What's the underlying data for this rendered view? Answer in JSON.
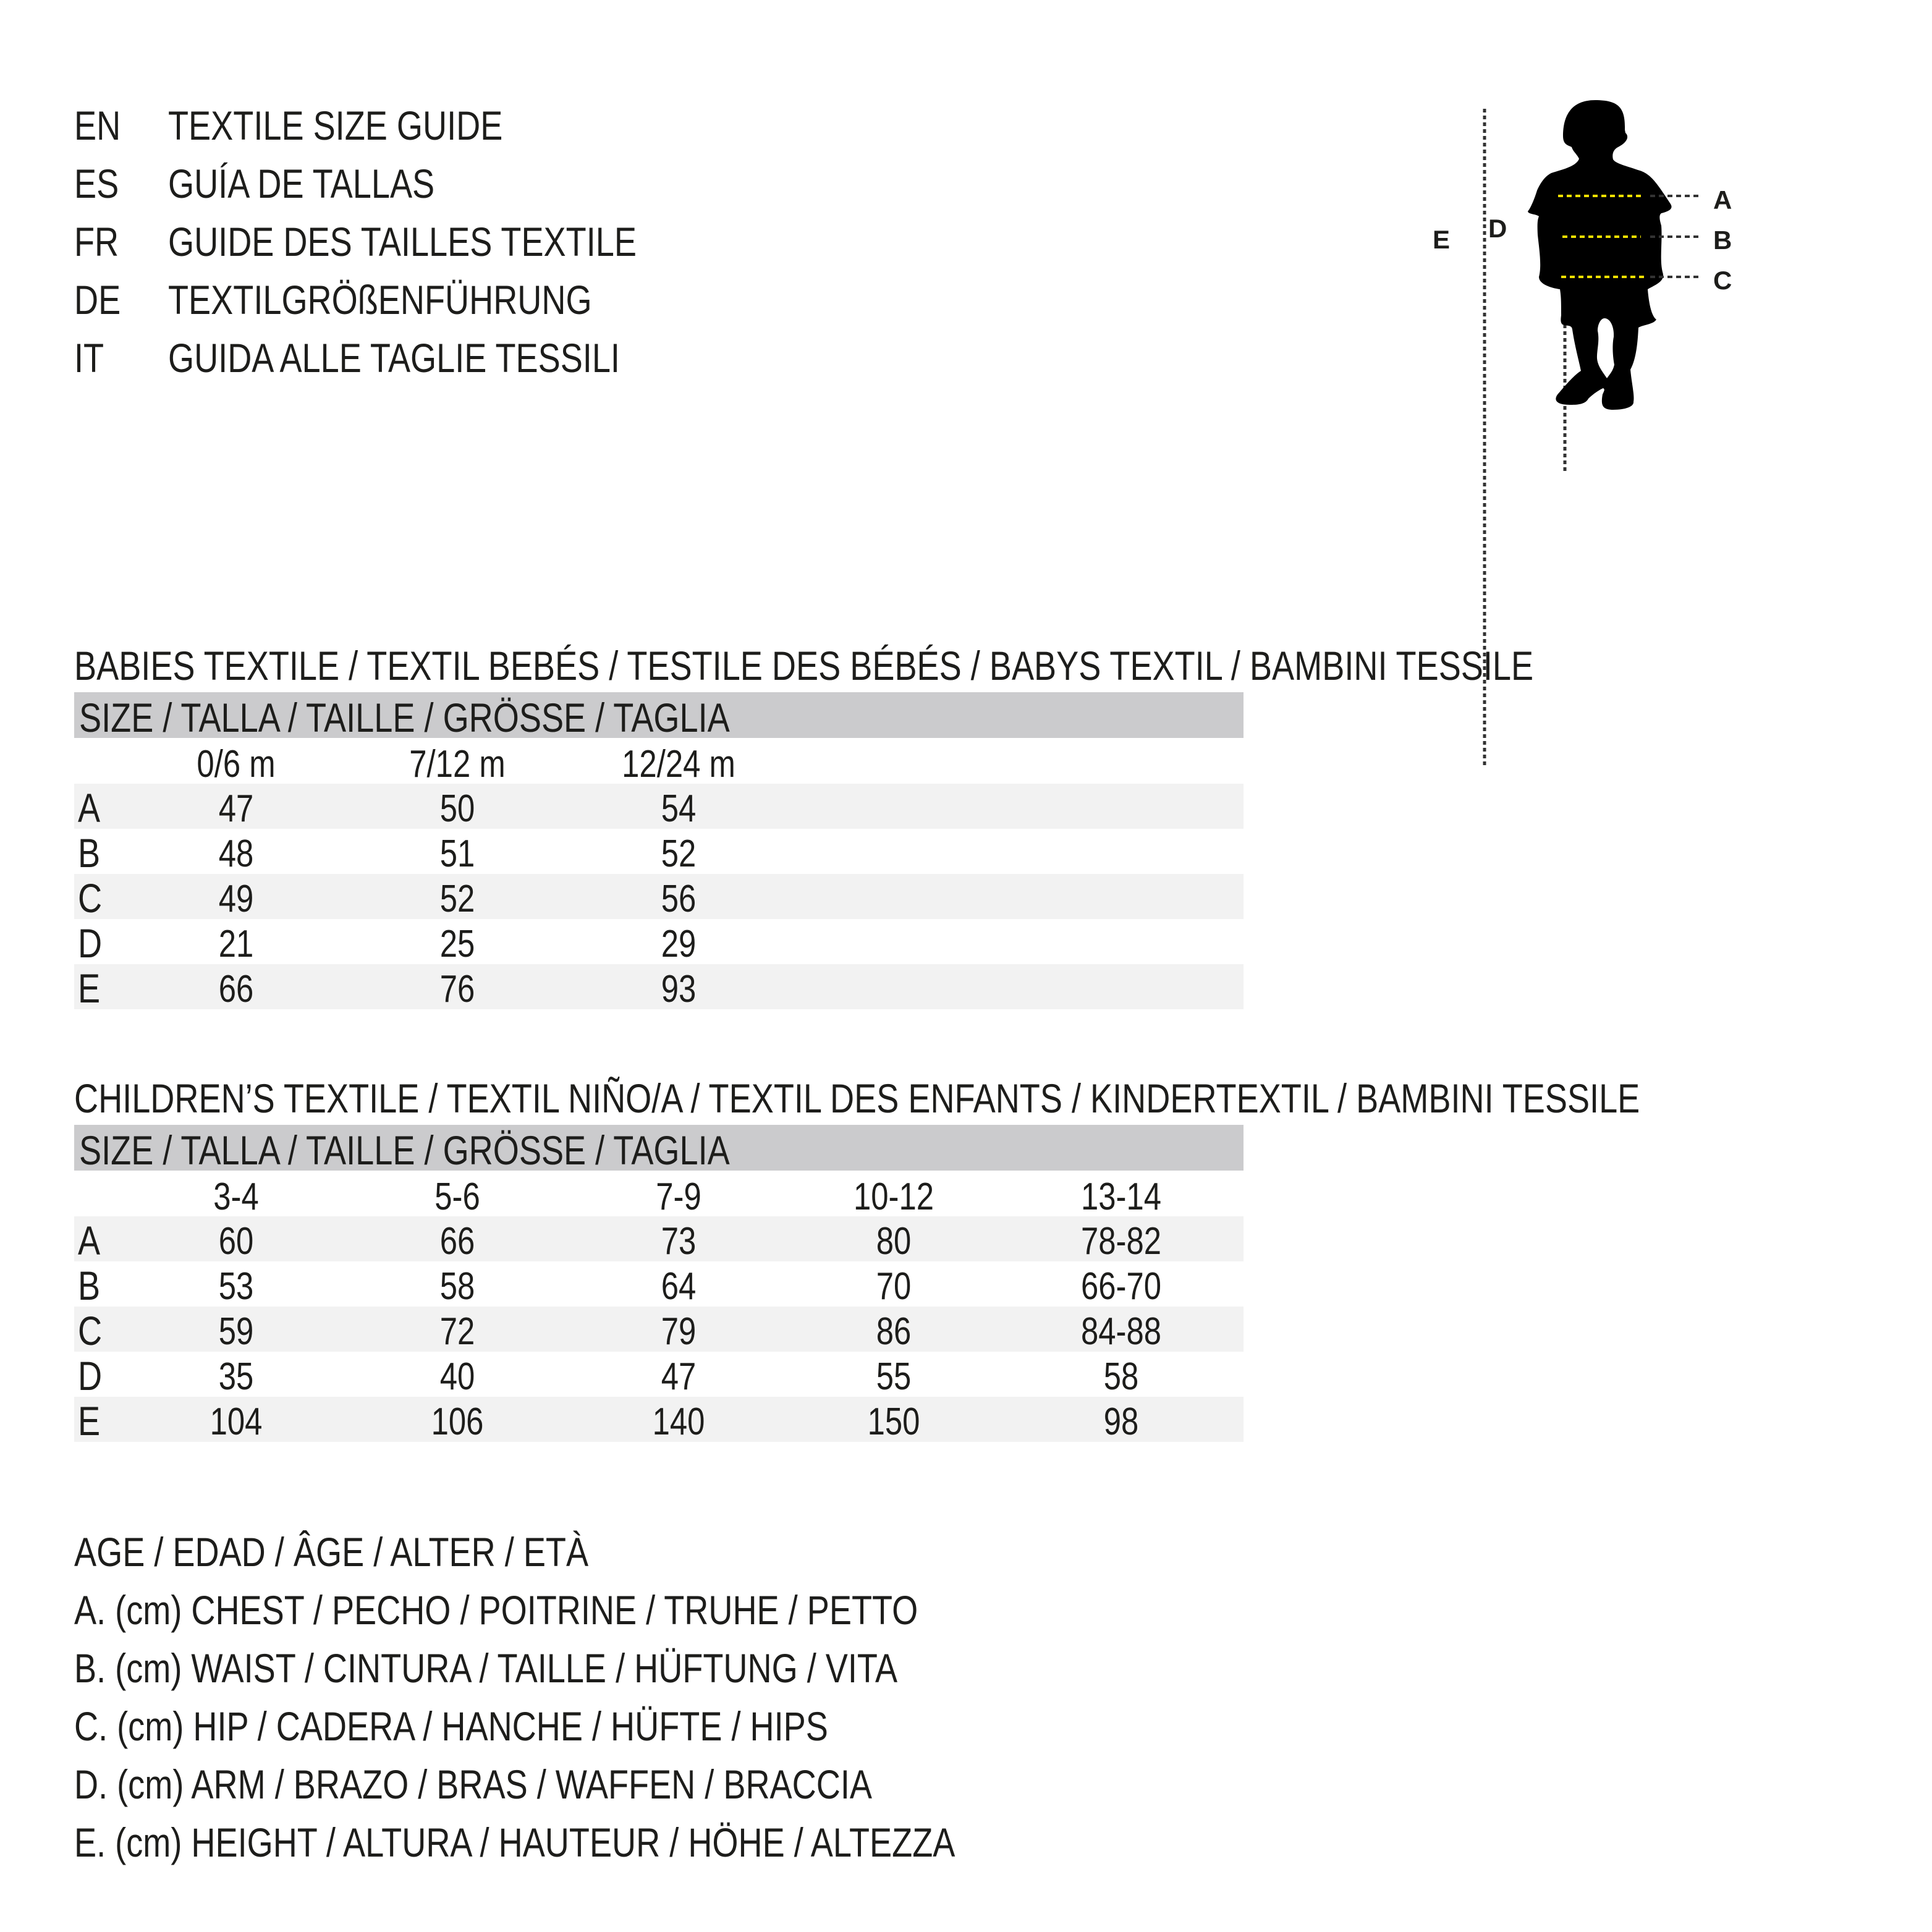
{
  "title_block": [
    {
      "code": "EN",
      "text": "TEXTILE SIZE GUIDE"
    },
    {
      "code": "ES",
      "text": "GUÍA DE TALLAS"
    },
    {
      "code": "FR",
      "text": "GUIDE DES TAILLES TEXTILE"
    },
    {
      "code": "DE",
      "text": "TEXTILGRÖßENFÜHRUNG"
    },
    {
      "code": "IT",
      "text": "GUIDA ALLE TAGLIE TESSILI"
    }
  ],
  "babies": {
    "title": "BABIES TEXTILE / TEXTIL BEBÉS / TESTILE DES BÉBÉS / BABYS TEXTIL / BAMBINI TESSILE",
    "header": "SIZE / TALLA / TAILLE / GRÖSSE / TAGLIA",
    "columns": [
      "0/6 m",
      "7/12 m",
      "12/24 m"
    ],
    "rows": [
      {
        "label": "A",
        "values": [
          "47",
          "50",
          "54"
        ]
      },
      {
        "label": "B",
        "values": [
          "48",
          "51",
          "52"
        ]
      },
      {
        "label": "C",
        "values": [
          "49",
          "52",
          "56"
        ]
      },
      {
        "label": "D",
        "values": [
          "21",
          "25",
          "29"
        ]
      },
      {
        "label": "E",
        "values": [
          "66",
          "76",
          "93"
        ]
      }
    ]
  },
  "children": {
    "title": "CHILDREN’S TEXTILE / TEXTIL NIÑO/A / TEXTIL DES ENFANTS / KINDERTEXTIL / BAMBINI TESSILE",
    "header": "SIZE / TALLA / TAILLE / GRÖSSE / TAGLIA",
    "columns": [
      "3-4",
      "5-6",
      "7-9",
      "10-12",
      "13-14"
    ],
    "rows": [
      {
        "label": "A",
        "values": [
          "60",
          "66",
          "73",
          "80",
          "78-82"
        ]
      },
      {
        "label": "B",
        "values": [
          "53",
          "58",
          "64",
          "70",
          "66-70"
        ]
      },
      {
        "label": "C",
        "values": [
          "59",
          "72",
          "79",
          "86",
          "84-88"
        ]
      },
      {
        "label": "D",
        "values": [
          "35",
          "40",
          "47",
          "55",
          "58"
        ]
      },
      {
        "label": "E",
        "values": [
          "104",
          "106",
          "140",
          "150",
          "98"
        ]
      }
    ]
  },
  "legend": [
    "AGE / EDAD / ÂGE / ALTER / ETÀ",
    "A. (cm) CHEST / PECHO / POITRINE / TRUHE / PETTO",
    "B. (cm) WAIST / CINTURA / TAILLE / HÜFTUNG / VITA",
    "C. (cm) HIP / CADERA / HANCHE / HÜFTE / HIPS",
    "D. (cm) ARM / BRAZO / BRAS / WAFFEN / BRACCIA",
    "E. (cm) HEIGHT / ALTURA / HAUTEUR / HÖHE / ALTEZZA"
  ],
  "figure": {
    "labels": {
      "a": "A",
      "b": "B",
      "c": "C",
      "d": "D",
      "e": "E"
    },
    "colors": {
      "measure_line": "#f3e000",
      "guide_line": "#333333",
      "silhouette": "#000000",
      "header_bar": "#cbcbcd",
      "stripe": "#f2f2f2"
    }
  }
}
